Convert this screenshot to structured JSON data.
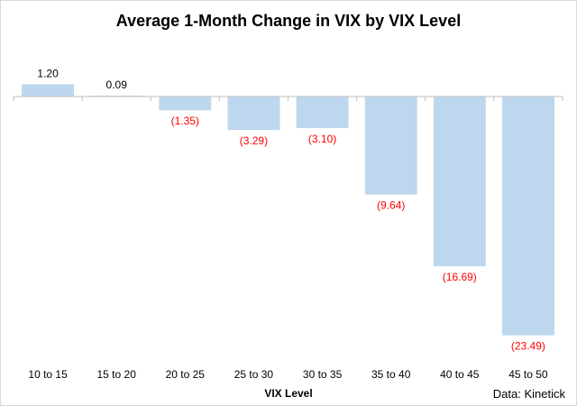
{
  "chart_data": {
    "type": "bar",
    "title": "Average 1-Month Change in VIX by VIX Level",
    "xlabel": "VIX Level",
    "ylabel": "",
    "categories": [
      "10 to 15",
      "15 to 20",
      "20 to 25",
      "25 to 30",
      "30 to 35",
      "35 to 40",
      "40 to 45",
      "45 to 50"
    ],
    "values": [
      1.2,
      0.09,
      -1.35,
      -3.29,
      -3.1,
      -9.64,
      -16.69,
      -23.49
    ],
    "value_labels": [
      "1.20",
      "0.09",
      "(1.35)",
      "(3.29)",
      "(3.10)",
      "(9.64)",
      "(16.69)",
      "(23.49)"
    ],
    "ylim": [
      -23.49,
      1.2
    ],
    "grid": false,
    "legend": "none",
    "source": "Data: Kinetick",
    "colors": {
      "bar": "#bdd7ee",
      "positive_label": "#000000",
      "negative_label": "#ff0000",
      "axis": "#bfbfbf"
    }
  }
}
